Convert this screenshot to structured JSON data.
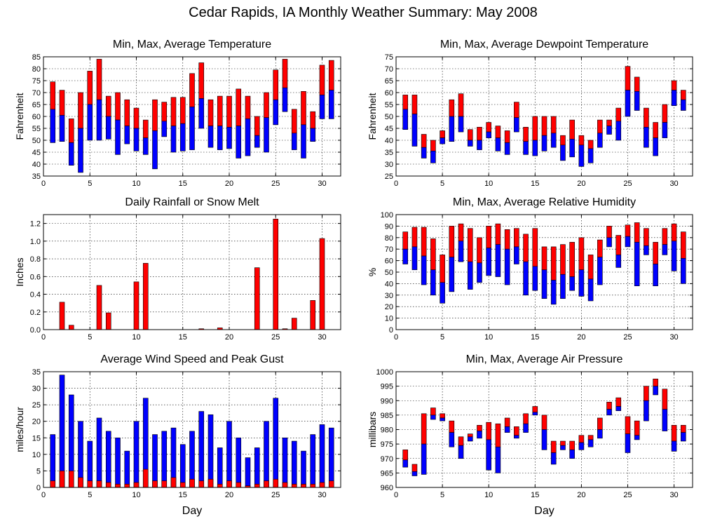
{
  "page": {
    "title": "Cedar Rapids, IA Monthly Weather Summary: May 2008"
  },
  "colors": {
    "red": "#ff0000",
    "blue": "#0000ff"
  },
  "chart_data": [
    {
      "id": "temperature",
      "type": "bar",
      "style": "range",
      "title": "Min, Max, Average Temperature",
      "xlabel": "",
      "ylabel": "Fahrenheit",
      "xlim": [
        0,
        32
      ],
      "ylim": [
        35,
        85
      ],
      "yticks": [
        35,
        40,
        45,
        50,
        55,
        60,
        65,
        70,
        75,
        80,
        85
      ],
      "xticks": [
        0,
        5,
        10,
        15,
        20,
        25,
        30
      ],
      "grid": true,
      "x": [
        1,
        2,
        3,
        4,
        5,
        6,
        7,
        8,
        9,
        10,
        11,
        12,
        13,
        14,
        15,
        16,
        17,
        18,
        19,
        20,
        21,
        22,
        23,
        24,
        25,
        26,
        27,
        28,
        29,
        30,
        31
      ],
      "max": [
        74.5,
        71,
        59,
        70,
        79,
        84,
        68.5,
        70,
        67,
        63.5,
        58.5,
        67,
        66,
        68,
        68,
        78,
        82.5,
        67,
        68.5,
        68.5,
        71.5,
        68.5,
        60,
        70,
        79.5,
        84,
        63,
        70.5,
        62,
        81.5,
        83.5
      ],
      "avg": [
        63,
        60.5,
        49,
        55,
        65,
        67,
        60,
        58.5,
        56,
        55,
        51,
        54,
        58,
        56,
        57,
        64,
        67.5,
        56,
        56,
        55.5,
        56,
        59,
        52,
        59.5,
        67,
        72,
        53,
        56.5,
        55,
        69,
        71
      ],
      "min": [
        49,
        49.5,
        39.5,
        36.5,
        50,
        50,
        50.5,
        44,
        48.5,
        45.5,
        44,
        38,
        51.5,
        45,
        45.5,
        46,
        55,
        47,
        46,
        46.5,
        42.5,
        43.5,
        47,
        45,
        56.5,
        62,
        46,
        42.5,
        49.5,
        59,
        59
      ]
    },
    {
      "id": "dewpoint",
      "type": "bar",
      "style": "range",
      "title": "Min, Max, Average Dewpoint Temperature",
      "xlabel": "",
      "ylabel": "Fahrenheit",
      "xlim": [
        0,
        32
      ],
      "ylim": [
        25,
        75
      ],
      "yticks": [
        25,
        30,
        35,
        40,
        45,
        50,
        55,
        60,
        65,
        70,
        75
      ],
      "xticks": [
        0,
        5,
        10,
        15,
        20,
        25,
        30
      ],
      "grid": true,
      "x": [
        1,
        2,
        3,
        4,
        5,
        6,
        7,
        8,
        9,
        10,
        11,
        12,
        13,
        14,
        15,
        16,
        17,
        18,
        19,
        20,
        21,
        22,
        23,
        24,
        25,
        26,
        27,
        28,
        29,
        30,
        31
      ],
      "max": [
        59,
        59,
        42.5,
        40,
        44,
        57,
        59.5,
        44.5,
        45.5,
        47.5,
        46,
        44,
        56,
        45.5,
        50,
        50,
        50,
        42,
        48.5,
        42,
        40,
        48.5,
        48.5,
        53.5,
        71,
        66.5,
        53.5,
        47.5,
        55,
        65,
        61
      ],
      "avg": [
        53,
        51,
        37,
        35.5,
        41,
        50,
        50,
        40,
        40,
        43.5,
        41,
        39,
        49.5,
        39.5,
        40,
        42,
        43,
        38,
        40.5,
        38,
        36.5,
        43,
        46,
        48,
        61,
        60.5,
        45.5,
        41,
        47.5,
        61,
        57
      ],
      "min": [
        44.5,
        37.5,
        32.5,
        30.5,
        38.5,
        39.5,
        43.5,
        37.5,
        36,
        41,
        35.5,
        34,
        43.5,
        34,
        33.5,
        35.5,
        37,
        31.5,
        33,
        29,
        30.5,
        37,
        42.5,
        40,
        50,
        52.5,
        37,
        33.5,
        41,
        54.5,
        52.5
      ]
    },
    {
      "id": "rainfall",
      "type": "bar",
      "style": "simple",
      "title": "Daily Rainfall or Snow Melt",
      "xlabel": "",
      "ylabel": "Inches",
      "xlim": [
        0,
        32
      ],
      "ylim": [
        0,
        1.3
      ],
      "yticks": [
        0,
        0.2,
        0.4,
        0.6,
        0.8,
        1.0,
        1.2
      ],
      "ytick_labels": [
        "0.0",
        "0.2",
        "0.4",
        "0.6",
        "0.8",
        "1.0",
        "1.2"
      ],
      "xticks": [
        0,
        5,
        10,
        15,
        20,
        25,
        30
      ],
      "grid": true,
      "x": [
        1,
        2,
        3,
        4,
        5,
        6,
        7,
        8,
        9,
        10,
        11,
        12,
        13,
        14,
        15,
        16,
        17,
        18,
        19,
        20,
        21,
        22,
        23,
        24,
        25,
        26,
        27,
        28,
        29,
        30,
        31
      ],
      "values": [
        0,
        0.31,
        0.05,
        0,
        0,
        0.5,
        0.19,
        0,
        0,
        0.54,
        0.75,
        0,
        0,
        0,
        0,
        0,
        0.01,
        0,
        0.02,
        0,
        0,
        0,
        0.7,
        0,
        1.25,
        0.01,
        0.13,
        0,
        0.33,
        1.03,
        0
      ]
    },
    {
      "id": "humidity",
      "type": "bar",
      "style": "range",
      "title": "Min, Max, Average Relative Humidity",
      "xlabel": "",
      "ylabel": "%",
      "xlim": [
        0,
        32
      ],
      "ylim": [
        0,
        100
      ],
      "yticks": [
        0,
        10,
        20,
        30,
        40,
        50,
        60,
        70,
        80,
        90,
        100
      ],
      "xticks": [
        0,
        5,
        10,
        15,
        20,
        25,
        30
      ],
      "grid": true,
      "x": [
        1,
        2,
        3,
        4,
        5,
        6,
        7,
        8,
        9,
        10,
        11,
        12,
        13,
        14,
        15,
        16,
        17,
        18,
        19,
        20,
        21,
        22,
        23,
        24,
        25,
        26,
        27,
        28,
        29,
        30,
        31
      ],
      "max": [
        85,
        89,
        89,
        79,
        65,
        90,
        92,
        88,
        80,
        90,
        92,
        87,
        88,
        83,
        88,
        72,
        72,
        74,
        76,
        80,
        65,
        78,
        90,
        82,
        91,
        93,
        88,
        76,
        88,
        92,
        85
      ],
      "avg": [
        70,
        72,
        64,
        52,
        41,
        63,
        77,
        59,
        58,
        71,
        74,
        70,
        72,
        59,
        55,
        52,
        43,
        48,
        46,
        52,
        44,
        63,
        80,
        65,
        81,
        76,
        73,
        57,
        74,
        77,
        62
      ],
      "min": [
        57,
        52,
        39,
        30,
        23,
        33,
        59,
        35,
        41,
        47,
        46,
        39,
        57,
        30,
        34,
        27,
        22,
        27,
        34,
        29,
        25,
        39,
        72,
        54,
        72,
        38,
        65,
        38,
        65,
        51,
        40
      ]
    },
    {
      "id": "wind",
      "type": "bar",
      "style": "overlay",
      "title": "Average Wind Speed and Peak Gust",
      "xlabel": "Day",
      "ylabel": "miles/hour",
      "xlim": [
        0,
        32
      ],
      "ylim": [
        0,
        35
      ],
      "yticks": [
        0,
        5,
        10,
        15,
        20,
        25,
        30,
        35
      ],
      "xticks": [
        0,
        5,
        10,
        15,
        20,
        25,
        30
      ],
      "grid": true,
      "x": [
        1,
        2,
        3,
        4,
        5,
        6,
        7,
        8,
        9,
        10,
        11,
        12,
        13,
        14,
        15,
        16,
        17,
        18,
        19,
        20,
        21,
        22,
        23,
        24,
        25,
        26,
        27,
        28,
        29,
        30,
        31
      ],
      "gust": [
        16,
        34,
        28,
        20,
        14,
        21,
        17,
        15,
        11,
        20,
        27,
        16,
        17,
        18,
        13,
        17,
        23,
        22,
        12,
        20,
        15,
        9,
        12,
        20,
        27,
        15,
        14,
        11,
        16,
        19,
        18
      ],
      "avg": [
        2,
        5,
        5,
        3,
        2,
        2,
        1.5,
        1,
        1,
        1.5,
        5.5,
        2,
        2,
        3,
        1.5,
        2.5,
        2,
        2.5,
        1,
        2,
        1.5,
        0.5,
        1,
        2,
        2.5,
        1.5,
        1,
        1,
        1,
        1.5,
        2
      ]
    },
    {
      "id": "pressure",
      "type": "bar",
      "style": "range",
      "title": "Min, Max, Average Air Pressure",
      "xlabel": "Day",
      "ylabel": "millibars",
      "xlim": [
        0,
        32
      ],
      "ylim": [
        960,
        1000
      ],
      "yticks": [
        960,
        965,
        970,
        975,
        980,
        985,
        990,
        995,
        1000
      ],
      "xticks": [
        0,
        5,
        10,
        15,
        20,
        25,
        30
      ],
      "grid": true,
      "x": [
        1,
        2,
        3,
        4,
        5,
        6,
        7,
        8,
        9,
        10,
        11,
        12,
        13,
        14,
        15,
        16,
        17,
        18,
        19,
        20,
        21,
        22,
        23,
        24,
        25,
        26,
        27,
        28,
        29,
        30,
        31
      ],
      "max": [
        973,
        968,
        985.5,
        987.5,
        985.5,
        983,
        977.5,
        978.5,
        981.5,
        982.5,
        982,
        984,
        981,
        985.5,
        988,
        985,
        976,
        976,
        976,
        978,
        978,
        984,
        989.5,
        991,
        984.5,
        983,
        995,
        997.5,
        994,
        981.5,
        981.5
      ],
      "avg": [
        969.5,
        965.5,
        975,
        985,
        984,
        979,
        974.5,
        977.5,
        979.5,
        976.5,
        974,
        981,
        978,
        982,
        986,
        980,
        972,
        974.5,
        973,
        975.5,
        976.5,
        980,
        987,
        988,
        978.5,
        978,
        990,
        995,
        987,
        976,
        979
      ],
      "min": [
        967,
        964,
        964.5,
        983.5,
        983,
        974,
        970,
        976,
        977,
        966,
        965,
        979,
        977,
        979,
        985,
        973,
        968,
        973,
        970,
        973,
        974,
        977,
        985,
        986.5,
        972,
        976.5,
        983,
        992,
        979.5,
        972.5,
        976
      ]
    }
  ]
}
